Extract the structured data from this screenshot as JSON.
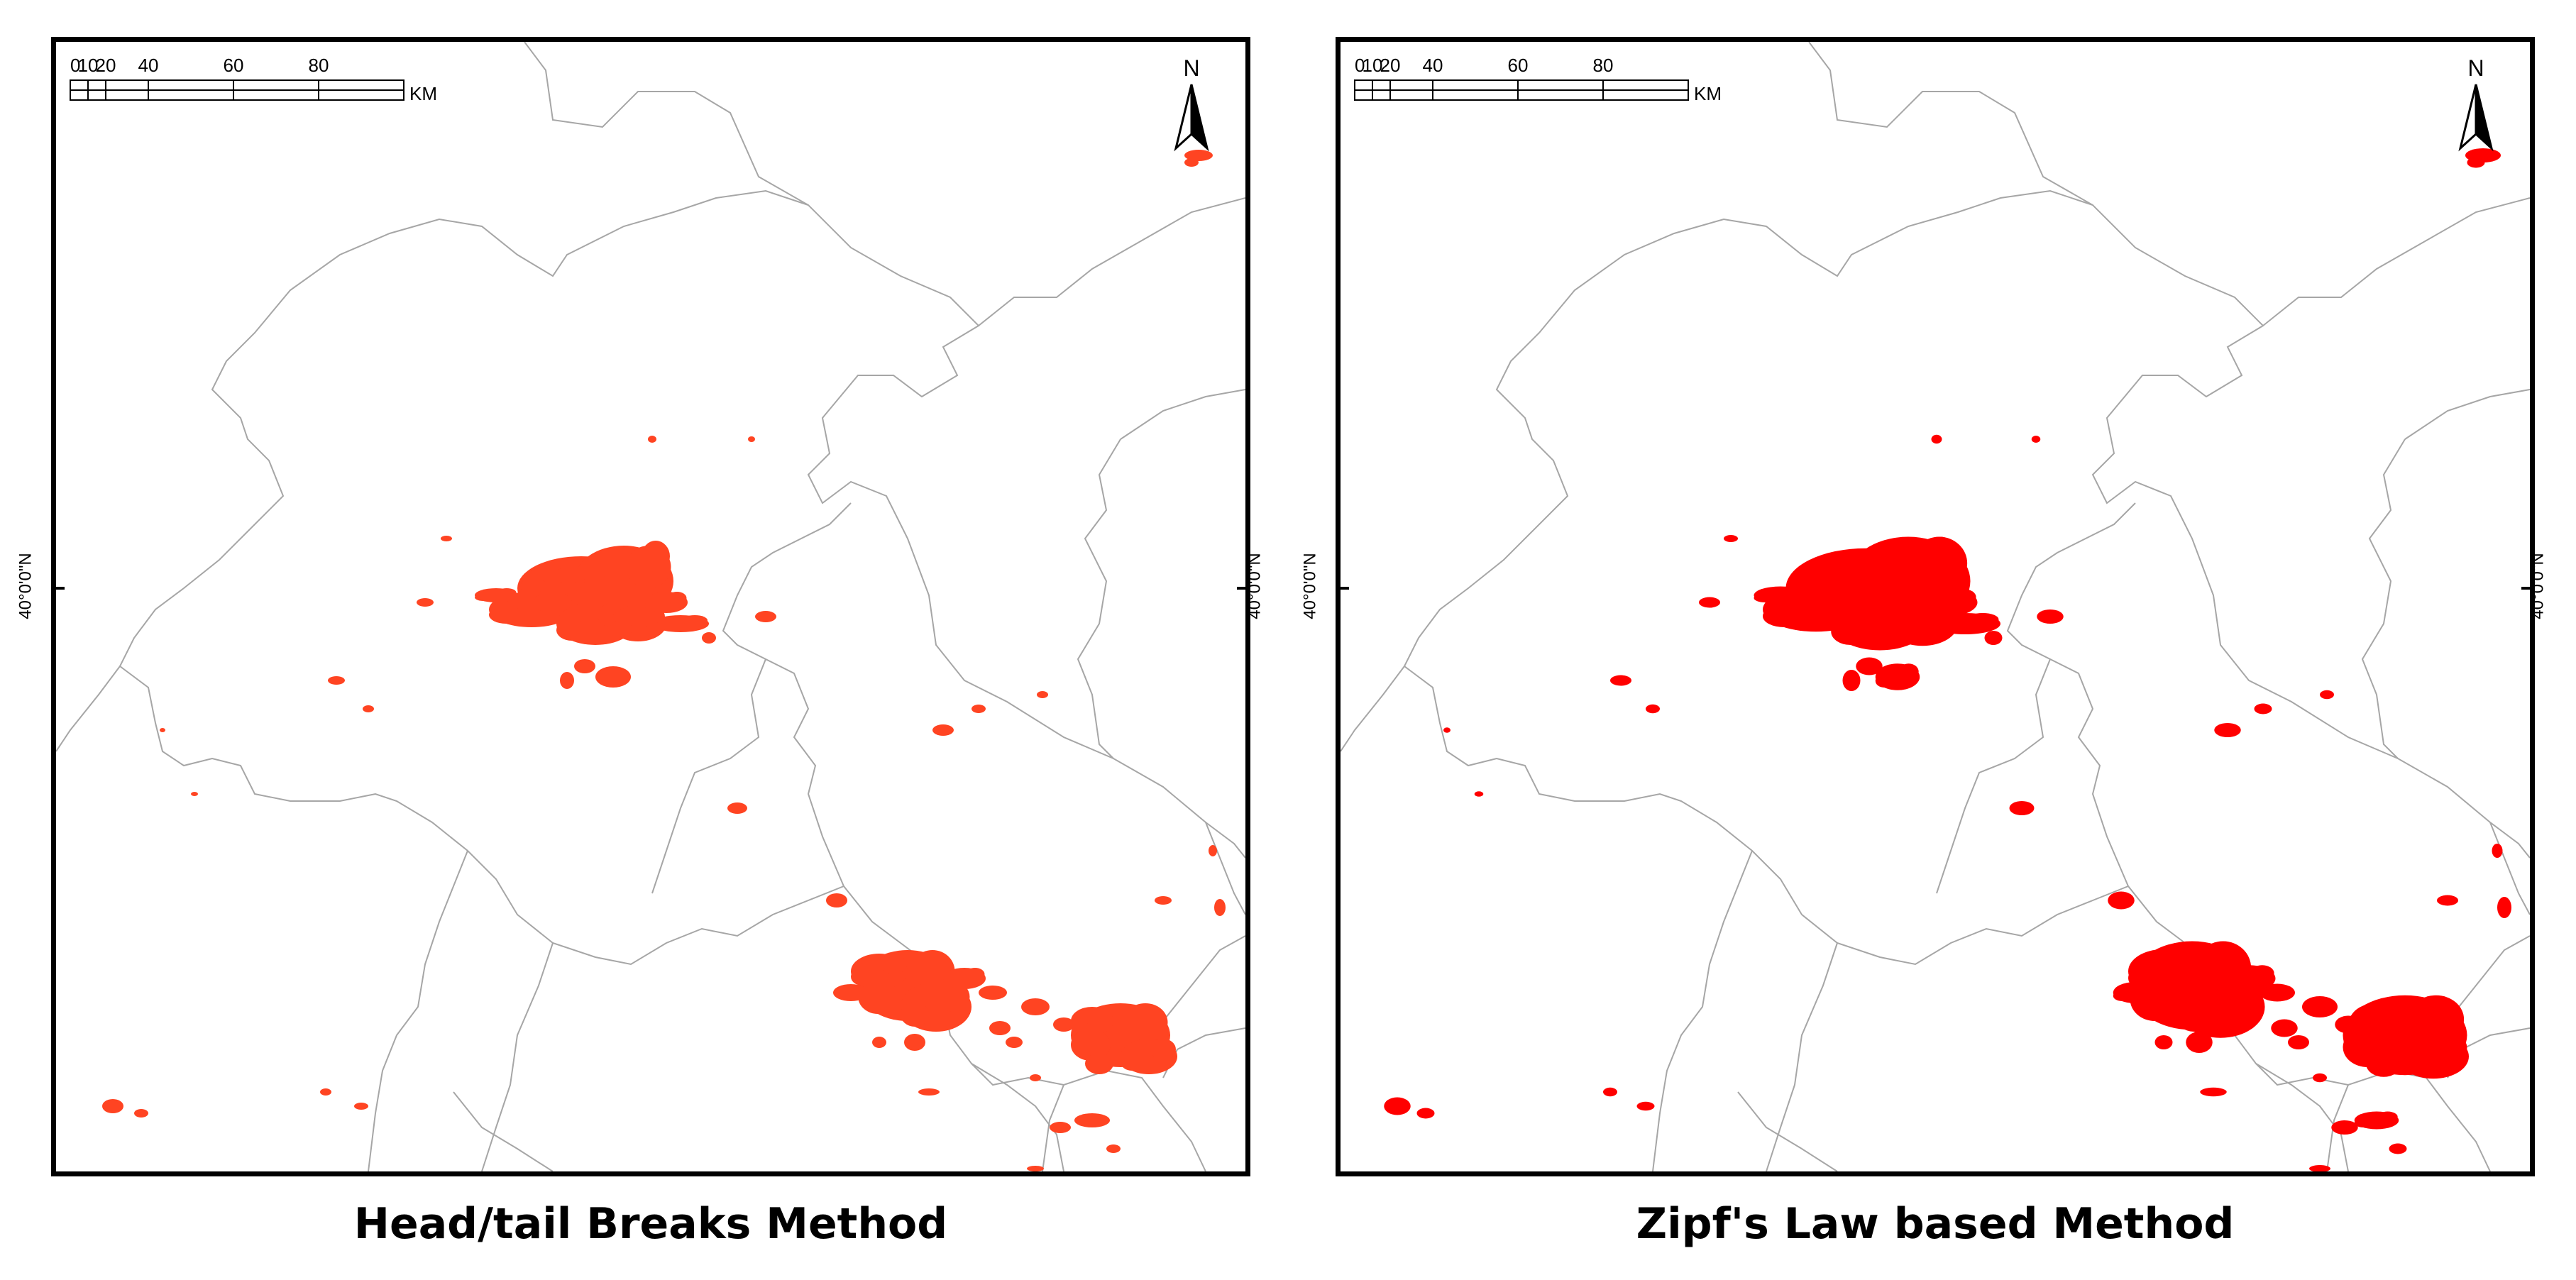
{
  "panels": [
    {
      "id": "left",
      "caption": "Head/tail Breaks Method",
      "latitude_label": "40°0'0\"N",
      "scale_ticks": [
        "0",
        "10",
        "20",
        "40",
        "60",
        "80"
      ],
      "scale_unit": "KM",
      "north_label": "N",
      "urban_color": "#ff4422"
    },
    {
      "id": "right",
      "caption": "Zipf's Law based Method",
      "latitude_label": "40°0'0\"N",
      "scale_ticks": [
        "0",
        "10",
        "20",
        "40",
        "60",
        "80"
      ],
      "scale_unit": "KM",
      "north_label": "N",
      "urban_color": "#ff0000"
    }
  ],
  "colors": {
    "frame": "#000000",
    "boundary": "#a6a6a6",
    "background": "#ffffff"
  }
}
